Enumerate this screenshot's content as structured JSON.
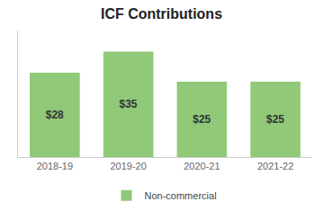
{
  "chart_data": {
    "type": "bar",
    "title": "ICF Contributions",
    "categories": [
      "2018-19",
      "2019-20",
      "2020-21",
      "2021-22"
    ],
    "series": [
      {
        "name": "Non-commercial",
        "color": "#90c978",
        "values": [
          28,
          35,
          25,
          25
        ],
        "value_labels": [
          "$28",
          "$35",
          "$25",
          "$25"
        ]
      }
    ],
    "data_labels": true,
    "ylim": [
      0,
      42
    ],
    "yticks": [],
    "tick_labels": "x",
    "grid": false,
    "legend": "bottom"
  }
}
